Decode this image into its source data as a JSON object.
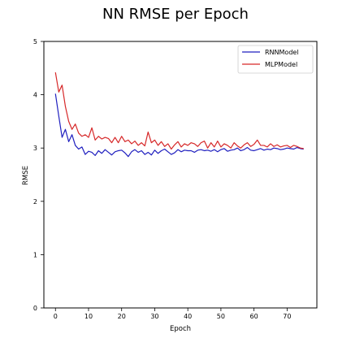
{
  "chart_data": {
    "type": "line",
    "title": "NN RMSE per Epoch",
    "xlabel": "Epoch",
    "ylabel": "RMSE",
    "xlim": [
      -3.5,
      79
    ],
    "ylim": [
      0,
      5
    ],
    "xticks": [
      0,
      10,
      20,
      30,
      40,
      50,
      60,
      70
    ],
    "xtick_labels": [
      "0",
      "10",
      "20",
      "30",
      "40",
      "50",
      "60",
      "70"
    ],
    "yticks": [
      0,
      1,
      2,
      3,
      4,
      5
    ],
    "ytick_labels": [
      "0",
      "1",
      "2",
      "3",
      "4",
      "5"
    ],
    "grid": false,
    "legend_position": "top-right",
    "series": [
      {
        "name": "RNNModel",
        "color": "#1f1fbf",
        "x": [
          0,
          1,
          2,
          3,
          4,
          5,
          6,
          7,
          8,
          9,
          10,
          11,
          12,
          13,
          14,
          15,
          16,
          17,
          18,
          19,
          20,
          21,
          22,
          23,
          24,
          25,
          26,
          27,
          28,
          29,
          30,
          31,
          32,
          33,
          34,
          35,
          36,
          37,
          38,
          39,
          40,
          41,
          42,
          43,
          44,
          45,
          46,
          47,
          48,
          49,
          50,
          51,
          52,
          53,
          54,
          55,
          56,
          57,
          58,
          59,
          60,
          61,
          62,
          63,
          64,
          65,
          66,
          67,
          68,
          69,
          70,
          71,
          72,
          73,
          74,
          75
        ],
        "values": [
          4.02,
          3.6,
          3.2,
          3.35,
          3.12,
          3.25,
          3.05,
          2.98,
          3.02,
          2.88,
          2.94,
          2.92,
          2.86,
          2.95,
          2.9,
          2.97,
          2.92,
          2.87,
          2.93,
          2.95,
          2.96,
          2.91,
          2.84,
          2.93,
          2.97,
          2.92,
          2.95,
          2.88,
          2.92,
          2.87,
          2.96,
          2.9,
          2.95,
          2.98,
          2.93,
          2.88,
          2.91,
          2.97,
          2.93,
          2.96,
          2.95,
          2.95,
          2.92,
          2.96,
          2.97,
          2.95,
          2.96,
          2.94,
          2.97,
          2.93,
          2.97,
          2.99,
          2.94,
          2.96,
          2.97,
          3.0,
          2.95,
          2.97,
          3.01,
          2.96,
          2.95,
          2.97,
          2.99,
          2.96,
          2.98,
          2.97,
          3.0,
          2.99,
          2.97,
          2.98,
          3.0,
          2.99,
          2.98,
          3.01,
          2.99,
          2.98
        ]
      },
      {
        "name": "MLPModel",
        "color": "#d62728",
        "x": [
          0,
          1,
          2,
          3,
          4,
          5,
          6,
          7,
          8,
          9,
          10,
          11,
          12,
          13,
          14,
          15,
          16,
          17,
          18,
          19,
          20,
          21,
          22,
          23,
          24,
          25,
          26,
          27,
          28,
          29,
          30,
          31,
          32,
          33,
          34,
          35,
          36,
          37,
          38,
          39,
          40,
          41,
          42,
          43,
          44,
          45,
          46,
          47,
          48,
          49,
          50,
          51,
          52,
          53,
          54,
          55,
          56,
          57,
          58,
          59,
          60,
          61,
          62,
          63,
          64,
          65,
          66,
          67,
          68,
          69,
          70,
          71,
          72,
          73,
          74,
          75
        ],
        "values": [
          4.42,
          4.05,
          4.18,
          3.78,
          3.5,
          3.35,
          3.45,
          3.28,
          3.22,
          3.25,
          3.2,
          3.38,
          3.15,
          3.22,
          3.17,
          3.2,
          3.18,
          3.1,
          3.2,
          3.1,
          3.22,
          3.12,
          3.15,
          3.08,
          3.13,
          3.05,
          3.1,
          3.04,
          3.3,
          3.1,
          3.15,
          3.05,
          3.12,
          3.03,
          3.08,
          2.98,
          3.06,
          3.12,
          3.02,
          3.08,
          3.05,
          3.1,
          3.08,
          3.03,
          3.1,
          3.13,
          3.0,
          3.1,
          3.02,
          3.13,
          3.02,
          3.08,
          3.05,
          3.0,
          3.1,
          3.04,
          3.0,
          3.06,
          3.1,
          3.03,
          3.07,
          3.15,
          3.05,
          3.05,
          3.02,
          3.08,
          3.03,
          3.06,
          3.02,
          3.04,
          3.05,
          3.01,
          3.05,
          3.03,
          3.0,
          2.99
        ]
      }
    ]
  }
}
